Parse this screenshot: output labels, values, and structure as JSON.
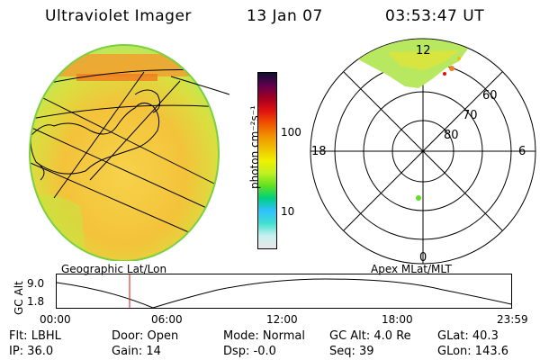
{
  "header": {
    "title": "Ultraviolet Imager",
    "date": "13 Jan 07",
    "time": "03:53:47  UT"
  },
  "colorbar": {
    "ticks": [
      "100",
      "10"
    ],
    "unit_label": "photon cm⁻²s⁻¹",
    "colors": [
      "#e8e8e8",
      "#c8f0f0",
      "#40e0d0",
      "#30c0ff",
      "#00d080",
      "#60e020",
      "#c0f020",
      "#f0f000",
      "#f0c000",
      "#f09000",
      "#f05000",
      "#e01010",
      "#a00020",
      "#600050",
      "#101030"
    ]
  },
  "geo_map": {
    "label": "Geographic Lat/Lon"
  },
  "polar": {
    "label": "Apex MLat/MLT",
    "mlt_labels": {
      "top": "12",
      "left": "18",
      "right": "6",
      "bottom": "0"
    },
    "lat_labels": [
      "60",
      "70",
      "80"
    ]
  },
  "altitude_plot": {
    "ylabel": "GC Alt",
    "yticks": [
      "9.0",
      "1.8"
    ],
    "xticks": [
      "00:00",
      "06:00",
      "12:00",
      "18:00",
      "23:59"
    ]
  },
  "footer": {
    "row1": [
      "Flt: LBHL",
      "Door: Open",
      "Mode: Normal",
      "GC Alt: 4.0 Re",
      "GLat:  40.3"
    ],
    "row2": [
      "IP: 36.0",
      "Gain: 14",
      "Dsp:   -0.0",
      "Seq: 39",
      "GLon: 143.6"
    ]
  }
}
